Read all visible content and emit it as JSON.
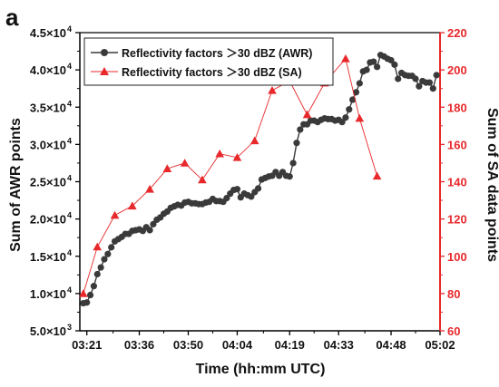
{
  "panel_label": "a",
  "chart_data": {
    "type": "line",
    "xlabel": "Time (hh:mm UTC)",
    "ylabel_left": "Sum of AWR points",
    "ylabel_right": "Sum of SA data points",
    "x_ticks": [
      "03:21",
      "03:36",
      "03:50",
      "04:04",
      "04:19",
      "04:33",
      "04:48",
      "05:02"
    ],
    "x_range": [
      "03:19",
      "05:02"
    ],
    "y_left": {
      "min": 5000,
      "max": 45000,
      "ticks": [
        {
          "value": 5000,
          "label": "5.0×10",
          "exp": "3"
        },
        {
          "value": 10000,
          "label": "1.0×10",
          "exp": "4"
        },
        {
          "value": 15000,
          "label": "1.5×10",
          "exp": "4"
        },
        {
          "value": 20000,
          "label": "2.0×10",
          "exp": "4"
        },
        {
          "value": 25000,
          "label": "2.5×10",
          "exp": "4"
        },
        {
          "value": 30000,
          "label": "3.0×10",
          "exp": "4"
        },
        {
          "value": 35000,
          "label": "3.5×10",
          "exp": "4"
        },
        {
          "value": 40000,
          "label": "4.0×10",
          "exp": "4"
        },
        {
          "value": 45000,
          "label": "4.5×10",
          "exp": "4"
        }
      ]
    },
    "y_right": {
      "min": 60,
      "max": 220,
      "ticks": [
        60,
        80,
        100,
        120,
        140,
        160,
        180,
        200,
        220
      ],
      "color": "#e8282b"
    },
    "legend_position": "top-left",
    "series": [
      {
        "name": "Reflectivity factors ＞30 dBZ (AWR)",
        "axis": "left",
        "color": "#3a3a3a",
        "marker": "circle",
        "points": [
          [
            "03:20",
            8700
          ],
          [
            "03:21",
            8800
          ],
          [
            "03:22",
            9800
          ],
          [
            "03:23",
            11000
          ],
          [
            "03:24",
            12600
          ],
          [
            "03:25",
            13500
          ],
          [
            "03:26",
            14600
          ],
          [
            "03:27",
            15300
          ],
          [
            "03:28",
            16200
          ],
          [
            "03:29",
            17000
          ],
          [
            "03:30",
            17300
          ],
          [
            "03:31",
            17600
          ],
          [
            "03:32",
            18000
          ],
          [
            "03:33",
            18000
          ],
          [
            "03:34",
            18400
          ],
          [
            "03:35",
            18500
          ],
          [
            "03:36",
            18600
          ],
          [
            "03:37",
            18400
          ],
          [
            "03:38",
            18900
          ],
          [
            "03:39",
            18500
          ],
          [
            "03:40",
            19300
          ],
          [
            "03:41",
            19900
          ],
          [
            "03:42",
            20200
          ],
          [
            "03:43",
            20700
          ],
          [
            "03:44",
            21000
          ],
          [
            "03:45",
            21500
          ],
          [
            "03:46",
            21700
          ],
          [
            "03:47",
            21900
          ],
          [
            "03:48",
            21800
          ],
          [
            "03:49",
            22200
          ],
          [
            "03:50",
            22300
          ],
          [
            "03:51",
            22100
          ],
          [
            "03:52",
            22100
          ],
          [
            "03:53",
            22000
          ],
          [
            "03:54",
            22000
          ],
          [
            "03:55",
            22200
          ],
          [
            "03:56",
            22300
          ],
          [
            "03:57",
            22700
          ],
          [
            "03:58",
            22400
          ],
          [
            "03:59",
            22400
          ],
          [
            "04:00",
            22300
          ],
          [
            "04:01",
            22800
          ],
          [
            "04:02",
            23400
          ],
          [
            "04:03",
            23900
          ],
          [
            "04:04",
            24000
          ],
          [
            "04:05",
            22900
          ],
          [
            "04:06",
            23400
          ],
          [
            "04:07",
            23200
          ],
          [
            "04:08",
            23000
          ],
          [
            "04:09",
            23600
          ],
          [
            "04:10",
            24100
          ],
          [
            "04:11",
            25300
          ],
          [
            "04:12",
            25500
          ],
          [
            "04:13",
            25700
          ],
          [
            "04:14",
            25800
          ],
          [
            "04:15",
            26300
          ],
          [
            "04:16",
            25800
          ],
          [
            "04:17",
            26300
          ],
          [
            "04:18",
            25800
          ],
          [
            "04:19",
            25700
          ],
          [
            "04:20",
            27500
          ],
          [
            "04:21",
            30200
          ],
          [
            "04:22",
            32000
          ],
          [
            "04:23",
            32700
          ],
          [
            "04:24",
            32700
          ],
          [
            "04:25",
            33200
          ],
          [
            "04:26",
            33200
          ],
          [
            "04:27",
            33000
          ],
          [
            "04:28",
            33300
          ],
          [
            "04:29",
            33500
          ],
          [
            "04:30",
            33400
          ],
          [
            "04:31",
            33400
          ],
          [
            "04:32",
            33200
          ],
          [
            "04:33",
            33300
          ],
          [
            "04:34",
            33000
          ],
          [
            "04:35",
            33600
          ],
          [
            "04:36",
            34700
          ],
          [
            "04:37",
            36000
          ],
          [
            "04:38",
            37000
          ],
          [
            "04:39",
            38200
          ],
          [
            "04:40",
            39800
          ],
          [
            "04:41",
            40000
          ],
          [
            "04:42",
            41000
          ],
          [
            "04:43",
            41100
          ],
          [
            "04:44",
            40400
          ],
          [
            "04:45",
            42000
          ],
          [
            "04:46",
            41800
          ],
          [
            "04:47",
            41500
          ],
          [
            "04:48",
            41300
          ],
          [
            "04:49",
            40700
          ],
          [
            "04:50",
            38800
          ],
          [
            "04:51",
            39600
          ],
          [
            "04:52",
            39300
          ],
          [
            "04:53",
            39200
          ],
          [
            "04:54",
            39200
          ],
          [
            "04:55",
            38800
          ],
          [
            "04:56",
            37800
          ],
          [
            "04:57",
            38500
          ],
          [
            "04:58",
            38300
          ],
          [
            "04:59",
            38300
          ],
          [
            "05:00",
            37500
          ],
          [
            "05:01",
            39300
          ]
        ]
      },
      {
        "name": "Reflectivity factors ＞30 dBZ (SA)",
        "axis": "right",
        "color": "#e8282b",
        "marker": "triangle",
        "points": [
          [
            "03:20",
            80
          ],
          [
            "03:24",
            105
          ],
          [
            "03:29",
            122
          ],
          [
            "03:34",
            127
          ],
          [
            "03:39",
            136
          ],
          [
            "03:44",
            147
          ],
          [
            "03:49",
            150
          ],
          [
            "03:54",
            141
          ],
          [
            "03:59",
            155
          ],
          [
            "04:04",
            153
          ],
          [
            "04:09",
            162
          ],
          [
            "04:14",
            189
          ],
          [
            "04:19",
            194
          ],
          [
            "04:24",
            176
          ],
          [
            "04:29",
            193
          ],
          [
            "04:35",
            206
          ],
          [
            "04:39",
            174
          ],
          [
            "04:44",
            143
          ]
        ]
      }
    ]
  }
}
